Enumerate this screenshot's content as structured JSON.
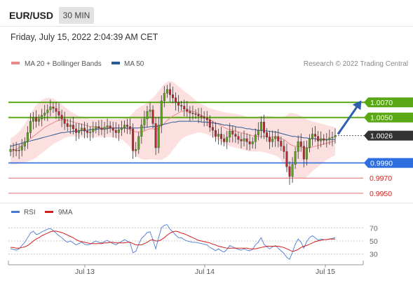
{
  "header": {
    "pair": "EUR/USD",
    "timeframe": "30 MIN",
    "datetime": "Friday, July 15, 2022 2:04:39 AM CET"
  },
  "legend": {
    "ma20_label": "MA 20 + Bollinger Bands",
    "ma50_label": "MA 50",
    "copyright": "Research © 2022 Trading Central",
    "rsi_label": "RSI",
    "rsi_ma_label": "9MA"
  },
  "colors": {
    "resistance": "#5aa816",
    "support": "#2e6fe0",
    "minor_support": "#e66b6b",
    "current_price": "#333333",
    "arrow": "#2e5fb0",
    "candle_up": "#5aa816",
    "candle_down": "#c0262f",
    "ma20": "#e88a8a",
    "ma50": "#2c5a94",
    "bollinger_fill": "#fbd6d6",
    "rsi_line": "#4a78d0",
    "rsi_ma_line": "#d21f1f"
  },
  "chart_data": [
    {
      "type": "candlestick",
      "title": "",
      "x_ticks": [
        "Jul 13",
        "Jul 14",
        "Jul 15"
      ],
      "ylim": [
        0.9948,
        1.0108
      ],
      "levels": [
        {
          "role": "resistance",
          "value": 1.007,
          "label": "1.0070"
        },
        {
          "role": "resistance",
          "value": 1.005,
          "label": "1.0050"
        },
        {
          "role": "current",
          "value": 1.0026,
          "label": "1.0026"
        },
        {
          "role": "support",
          "value": 0.999,
          "label": "0.9990"
        },
        {
          "role": "minor_support",
          "value": 0.997,
          "label": "0.9970"
        },
        {
          "role": "minor_support",
          "value": 0.995,
          "label": "0.9950"
        }
      ],
      "closes": [
        1.0008,
        1.0007,
        1.0006,
        1.0007,
        1.0012,
        1.0018,
        1.003,
        1.0045,
        1.005,
        1.0045,
        1.0048,
        1.0053,
        1.0056,
        1.006,
        1.0064,
        1.0062,
        1.0058,
        1.0053,
        1.0048,
        1.0042,
        1.0038,
        1.004,
        1.0035,
        1.003,
        1.0033,
        1.0036,
        1.0032,
        1.003,
        1.0031,
        1.0035,
        1.0038,
        1.0036,
        1.0034,
        1.0037,
        1.0039,
        1.0036,
        1.0033,
        1.003,
        1.0034,
        1.0036,
        1.004,
        1.0038,
        1.0035,
        1.0006,
        1.0008,
        1.0025,
        1.004,
        1.0048,
        1.0058,
        1.006,
        1.0042,
        1.001,
        1.004,
        1.0072,
        1.0082,
        1.0087,
        1.008,
        1.0076,
        1.007,
        1.0066,
        1.0065,
        1.0061,
        1.0058,
        1.0056,
        1.0055,
        1.0054,
        1.0052,
        1.0051,
        1.0049,
        1.0047,
        1.0037,
        1.0033,
        1.0025,
        1.0028,
        1.0022,
        1.0018,
        1.0024,
        1.0032,
        1.0028,
        1.0025,
        1.0021,
        1.0019,
        1.0022,
        1.0018,
        1.0015,
        1.0018,
        1.0027,
        1.0033,
        1.0044,
        1.003,
        1.0024,
        1.0018,
        1.0022,
        1.0025,
        1.0019,
        1.0012,
        1.0005,
        0.9985,
        0.9972,
        0.9988,
        1.0005,
        1.0018,
        1.0012,
        0.9995,
        1.001,
        1.0022,
        1.0028,
        1.0025,
        1.0019,
        1.0022,
        1.002,
        1.0021,
        1.0023,
        1.0024,
        1.0026
      ],
      "ma20": [
        1.0005,
        1.0006,
        1.0008,
        1.001,
        1.0013,
        1.0016,
        1.0019,
        1.0022,
        1.0025,
        1.0028,
        1.0031,
        1.0034,
        1.0037,
        1.0039,
        1.0041,
        1.0043,
        1.0045,
        1.0046,
        1.0047,
        1.0047,
        1.0046,
        1.0045,
        1.0044,
        1.0043,
        1.0042,
        1.0041,
        1.004,
        1.0039,
        1.0038,
        1.0038,
        1.0037,
        1.0037,
        1.0036,
        1.0036,
        1.0036,
        1.0036,
        1.0036,
        1.0036,
        1.0036,
        1.0036,
        1.0036,
        1.0035,
        1.0034,
        1.0032,
        1.0031,
        1.0031,
        1.0031,
        1.0032,
        1.0034,
        1.0035,
        1.0035,
        1.0034,
        1.0036,
        1.0039,
        1.0042,
        1.0046,
        1.0049,
        1.0052,
        1.0054,
        1.0056,
        1.0058,
        1.0059,
        1.0059,
        1.0059,
        1.0058,
        1.0057,
        1.0055,
        1.0053,
        1.0051,
        1.0049,
        1.0047,
        1.0045,
        1.0043,
        1.0041,
        1.0039,
        1.0037,
        1.0035,
        1.0034,
        1.0033,
        1.0032,
        1.0031,
        1.003,
        1.0029,
        1.0028,
        1.0027,
        1.0026,
        1.0025,
        1.0025,
        1.0025,
        1.0025,
        1.0025,
        1.0024,
        1.0024,
        1.0024,
        1.0023,
        1.0022,
        1.0021,
        1.0018,
        1.0015,
        1.0013,
        1.0012,
        1.0012,
        1.0011,
        1.001,
        1.001,
        1.001,
        1.0011,
        1.0012,
        1.0013,
        1.0014,
        1.0015,
        1.0016,
        1.0017,
        1.0018,
        1.0019
      ],
      "ma50": [
        1.0012,
        1.0013,
        1.0014,
        1.0015,
        1.0016,
        1.0017,
        1.0018,
        1.0019,
        1.002,
        1.0021,
        1.0022,
        1.0023,
        1.0024,
        1.0025,
        1.0026,
        1.0027,
        1.0028,
        1.0029,
        1.003,
        1.003,
        1.0031,
        1.0031,
        1.0032,
        1.0032,
        1.0032,
        1.0033,
        1.0033,
        1.0033,
        1.0034,
        1.0034,
        1.0034,
        1.0035,
        1.0035,
        1.0035,
        1.0035,
        1.0036,
        1.0036,
        1.0036,
        1.0036,
        1.0036,
        1.0036,
        1.0036,
        1.0036,
        1.0036,
        1.0036,
        1.0036,
        1.0037,
        1.0037,
        1.0037,
        1.0038,
        1.0038,
        1.0038,
        1.0039,
        1.004,
        1.0041,
        1.0042,
        1.0043,
        1.0044,
        1.0044,
        1.0045,
        1.0045,
        1.0045,
        1.0045,
        1.0045,
        1.0045,
        1.0045,
        1.0045,
        1.0044,
        1.0044,
        1.0044,
        1.0043,
        1.0043,
        1.0042,
        1.0042,
        1.0041,
        1.004,
        1.004,
        1.0039,
        1.0039,
        1.0038,
        1.0037,
        1.0037,
        1.0036,
        1.0035,
        1.0035,
        1.0034,
        1.0034,
        1.0033,
        1.0033,
        1.0033,
        1.0032,
        1.0032,
        1.0031,
        1.0031,
        1.003,
        1.0029,
        1.0028,
        1.0027,
        1.0026,
        1.0025,
        1.0025,
        1.0024,
        1.0024,
        1.0023,
        1.0023,
        1.0022,
        1.0022,
        1.0022,
        1.0021,
        1.0021,
        1.0021,
        1.0021,
        1.0021,
        1.0021,
        1.0021
      ],
      "bb_upper": [
        1.0022,
        1.0025,
        1.0028,
        1.0031,
        1.0036,
        1.0041,
        1.0048,
        1.0055,
        1.0061,
        1.0066,
        1.007,
        1.0073,
        1.0075,
        1.0076,
        1.0076,
        1.0075,
        1.0073,
        1.007,
        1.0067,
        1.0064,
        1.0061,
        1.0058,
        1.0056,
        1.0054,
        1.0052,
        1.0051,
        1.005,
        1.0049,
        1.0048,
        1.0048,
        1.0048,
        1.0048,
        1.0048,
        1.0048,
        1.0048,
        1.0048,
        1.0048,
        1.0048,
        1.0048,
        1.0048,
        1.0049,
        1.005,
        1.0052,
        1.0056,
        1.006,
        1.0063,
        1.0065,
        1.0067,
        1.007,
        1.0073,
        1.0076,
        1.008,
        1.0085,
        1.009,
        1.0094,
        1.0097,
        1.0098,
        1.0097,
        1.0094,
        1.0091,
        1.0088,
        1.0085,
        1.0082,
        1.0079,
        1.0076,
        1.0073,
        1.007,
        1.0068,
        1.0066,
        1.0064,
        1.0062,
        1.0061,
        1.006,
        1.0059,
        1.0058,
        1.0057,
        1.0056,
        1.0056,
        1.0055,
        1.0055,
        1.0054,
        1.0053,
        1.0052,
        1.0051,
        1.005,
        1.005,
        1.005,
        1.0051,
        1.0052,
        1.0052,
        1.0052,
        1.0052,
        1.0051,
        1.005,
        1.005,
        1.005,
        1.005,
        1.0053,
        1.0056,
        1.0056,
        1.0055,
        1.0054,
        1.0052,
        1.005,
        1.0048,
        1.0046,
        1.0045,
        1.0044,
        1.0043,
        1.0042,
        1.0041,
        1.004,
        1.0039,
        1.0038,
        1.0037
      ],
      "bb_lower": [
        0.9988,
        0.9988,
        0.9988,
        0.9989,
        0.999,
        0.9991,
        0.9992,
        0.9993,
        0.9995,
        0.9997,
        1.0,
        1.0003,
        1.0006,
        1.0009,
        1.0012,
        1.0015,
        1.0017,
        1.0019,
        1.0021,
        1.0023,
        1.0024,
        1.0025,
        1.0025,
        1.0025,
        1.0024,
        1.0024,
        1.0024,
        1.0024,
        1.0024,
        1.0024,
        1.0024,
        1.0024,
        1.0024,
        1.0024,
        1.0024,
        1.0024,
        1.0024,
        1.0023,
        1.0022,
        1.0021,
        1.0018,
        1.0015,
        1.0011,
        1.0005,
        1.0,
        0.9997,
        0.9995,
        0.9994,
        0.9994,
        0.9995,
        0.9995,
        0.9994,
        0.9994,
        0.9994,
        0.9996,
        0.9998,
        1.0002,
        1.0007,
        1.0012,
        1.0017,
        1.0021,
        1.0024,
        1.0026,
        1.0027,
        1.0028,
        1.0029,
        1.003,
        1.003,
        1.0029,
        1.0028,
        1.0026,
        1.0024,
        1.0022,
        1.002,
        1.0018,
        1.0016,
        1.0014,
        1.0012,
        1.0011,
        1.001,
        1.0009,
        1.0008,
        1.0007,
        1.0006,
        1.0005,
        1.0005,
        1.0005,
        1.0005,
        1.0005,
        1.0004,
        1.0003,
        1.0002,
        1.0001,
        1.0,
        0.9998,
        0.9994,
        0.9988,
        0.9982,
        0.9975,
        0.9972,
        0.997,
        0.997,
        0.997,
        0.997,
        0.9972,
        0.9975,
        0.9979,
        0.9982,
        0.9985,
        0.9988,
        0.9991,
        0.9994,
        0.9996,
        0.9998,
        1.0
      ]
    },
    {
      "type": "line",
      "title": "",
      "y_ticks": [
        70,
        50,
        30
      ],
      "ylim": [
        20,
        80
      ],
      "series": [
        {
          "name": "RSI",
          "values": [
            38,
            37,
            36,
            38,
            43,
            48,
            55,
            62,
            65,
            60,
            61,
            64,
            66,
            68,
            69,
            66,
            62,
            58,
            55,
            51,
            48,
            50,
            47,
            44,
            46,
            48,
            45,
            44,
            45,
            48,
            50,
            48,
            47,
            49,
            51,
            48,
            46,
            44,
            47,
            49,
            52,
            50,
            47,
            32,
            34,
            45,
            54,
            58,
            63,
            64,
            52,
            38,
            55,
            70,
            74,
            75,
            68,
            64,
            59,
            55,
            55,
            52,
            50,
            49,
            48,
            48,
            47,
            46,
            45,
            44,
            40,
            38,
            35,
            38,
            35,
            33,
            37,
            43,
            41,
            39,
            37,
            36,
            38,
            36,
            35,
            37,
            44,
            48,
            55,
            45,
            41,
            38,
            41,
            43,
            39,
            35,
            31,
            25,
            22,
            33,
            45,
            53,
            48,
            39,
            49,
            55,
            58,
            55,
            51,
            53,
            52,
            52,
            53,
            54,
            55
          ]
        },
        {
          "name": "9MA",
          "values": [
            40,
            40,
            39,
            39,
            40,
            41,
            43,
            46,
            50,
            53,
            55,
            58,
            60,
            62,
            64,
            65,
            65,
            64,
            63,
            61,
            59,
            57,
            55,
            52,
            50,
            49,
            48,
            47,
            46,
            46,
            46,
            46,
            46,
            47,
            47,
            48,
            48,
            47,
            47,
            47,
            47,
            48,
            48,
            46,
            44,
            44,
            44,
            46,
            48,
            51,
            52,
            50,
            50,
            52,
            55,
            59,
            62,
            64,
            65,
            64,
            62,
            61,
            59,
            57,
            55,
            53,
            51,
            50,
            49,
            48,
            47,
            45,
            44,
            42,
            41,
            40,
            39,
            39,
            39,
            39,
            39,
            39,
            39,
            39,
            38,
            38,
            38,
            39,
            40,
            41,
            42,
            42,
            42,
            42,
            42,
            41,
            40,
            38,
            36,
            34,
            35,
            37,
            40,
            42,
            43,
            45,
            47,
            49,
            50,
            51,
            52,
            52,
            53,
            53,
            53
          ]
        }
      ]
    }
  ]
}
